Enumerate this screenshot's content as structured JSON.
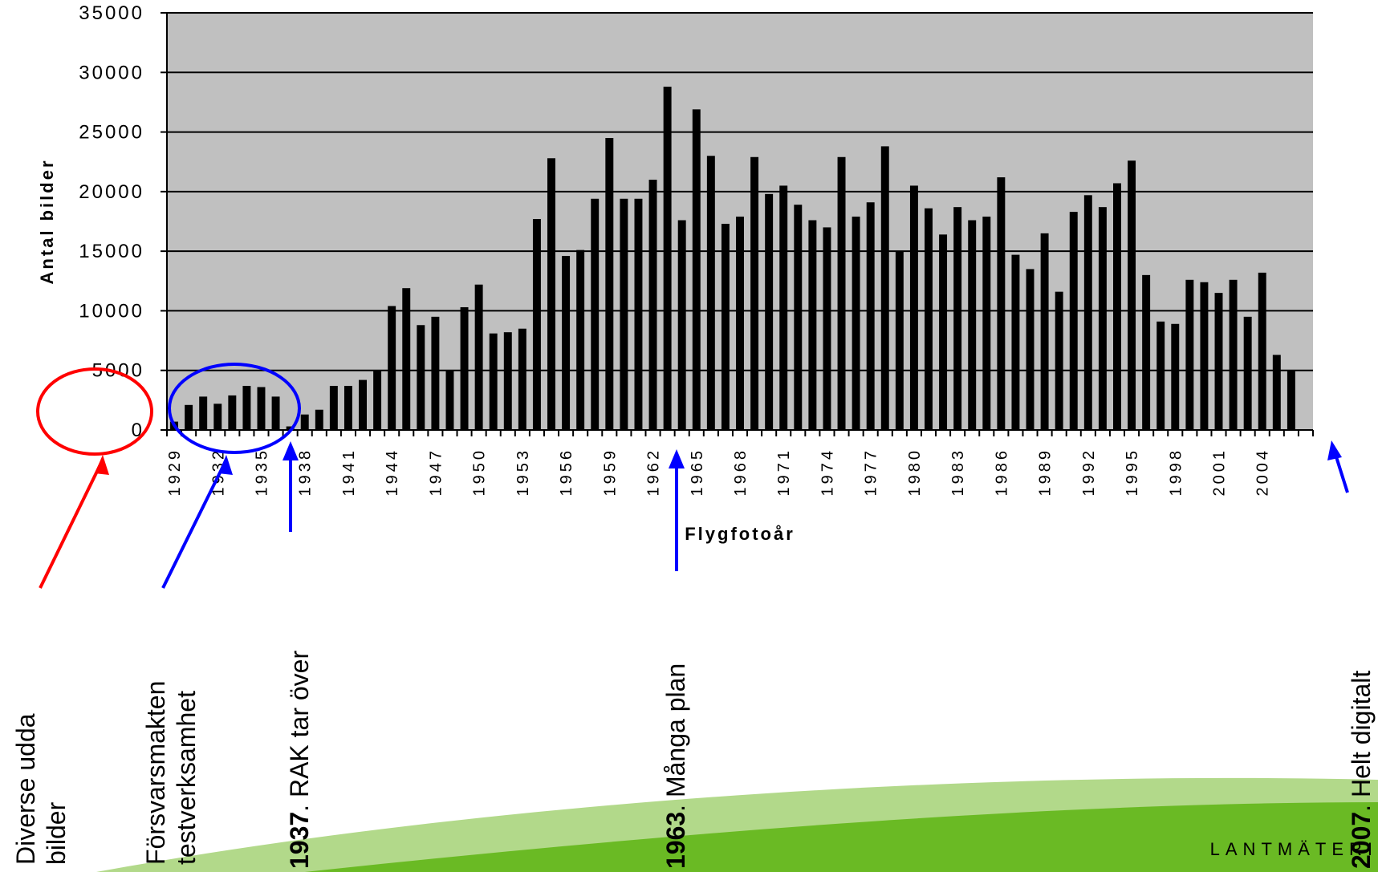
{
  "chart_data": {
    "type": "bar",
    "xlabel": "Flygfotoår",
    "ylabel": "Antal bilder",
    "ylim": [
      0,
      35000
    ],
    "yticks": [
      0,
      5000,
      10000,
      15000,
      20000,
      25000,
      30000,
      35000
    ],
    "grid": true,
    "x_tick_labels": [
      "1929",
      "1932",
      "1935",
      "1938",
      "1941",
      "1944",
      "1947",
      "1950",
      "1953",
      "1956",
      "1959",
      "1962",
      "1965",
      "1968",
      "1971",
      "1974",
      "1977",
      "1980",
      "1983",
      "1986",
      "1989",
      "1992",
      "1995",
      "1998",
      "2001",
      "2004"
    ],
    "categories": [
      1929,
      1930,
      1931,
      1932,
      1933,
      1934,
      1935,
      1936,
      1937,
      1938,
      1939,
      1940,
      1941,
      1942,
      1943,
      1944,
      1945,
      1946,
      1947,
      1948,
      1949,
      1950,
      1951,
      1952,
      1953,
      1954,
      1955,
      1956,
      1957,
      1958,
      1959,
      1960,
      1961,
      1962,
      1963,
      1964,
      1965,
      1966,
      1967,
      1968,
      1969,
      1970,
      1971,
      1972,
      1973,
      1974,
      1975,
      1976,
      1977,
      1978,
      1979,
      1980,
      1981,
      1982,
      1983,
      1984,
      1985,
      1986,
      1987,
      1988,
      1989,
      1990,
      1991,
      1992,
      1993,
      1994,
      1995,
      1996,
      1997,
      1998,
      1999,
      2000,
      2001,
      2002,
      2003,
      2004,
      2005,
      2006,
      2007
    ],
    "values": [
      700,
      2100,
      2800,
      2200,
      2900,
      3700,
      3600,
      2800,
      300,
      1300,
      1700,
      3700,
      3700,
      4200,
      5000,
      10400,
      11900,
      8800,
      9500,
      5000,
      10300,
      12200,
      8100,
      8200,
      8500,
      17700,
      22800,
      14600,
      15100,
      19400,
      24500,
      19400,
      19400,
      21000,
      28800,
      17600,
      26900,
      23000,
      17300,
      17900,
      22900,
      19800,
      20500,
      18900,
      17600,
      17000,
      22900,
      17900,
      19100,
      23800,
      15000,
      20500,
      18600,
      16400,
      18700,
      17600,
      17900,
      21200,
      14700,
      13500,
      16500,
      11600,
      18300,
      19700,
      18700,
      20700,
      22600,
      13000,
      9100,
      8900,
      12600,
      12400,
      11500,
      12600,
      9500,
      13200,
      6300,
      5000,
      0
    ],
    "annotations": [
      {
        "id": "diverse",
        "lines": [
          "Diverse udda",
          "bilder"
        ]
      },
      {
        "id": "forsvar",
        "lines": [
          "Försvarsmakten",
          "testverksamhet"
        ]
      },
      {
        "id": "rak",
        "year": "1937",
        "text": ". RAK tar över"
      },
      {
        "id": "manga",
        "year": "1963",
        "text": ". Många plan"
      },
      {
        "id": "digital",
        "year": "2007",
        "text": ". Helt digitalt"
      }
    ],
    "colors": {
      "plot_bg": "#c0c0c0",
      "bar": "#000000",
      "red": "#ff0000",
      "blue": "#0000ff",
      "green_light": "#b2d98a",
      "green_dark": "#6aba24"
    }
  },
  "logo": {
    "text": "LANTMÄTERI"
  }
}
